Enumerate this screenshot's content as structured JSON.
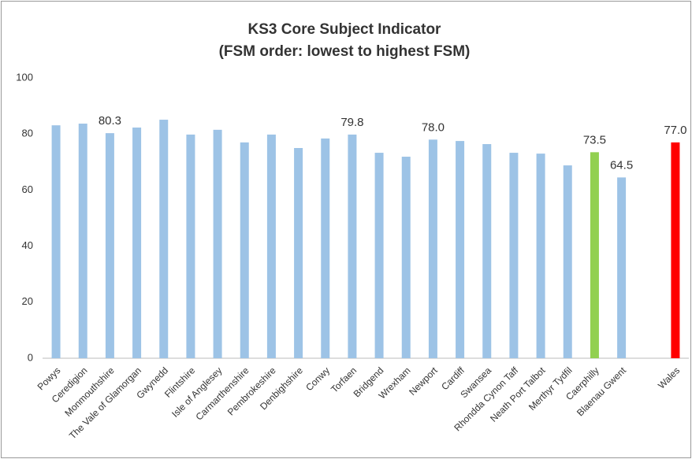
{
  "chart_data": {
    "type": "bar",
    "title": "KS3 Core Subject Indicator",
    "subtitle": "(FSM order: lowest to highest FSM)",
    "categories": [
      "Powys",
      "Ceredigion",
      "Monmouthshire",
      "The Vale of Glamorgan",
      "Gwynedd",
      "Flintshire",
      "Isle of Anglesey",
      "Carmarthenshire",
      "Pembrokeshire",
      "Denbighshire",
      "Conwy",
      "Torfaen",
      "Bridgend",
      "Wrexham",
      "Newport",
      "Cardiff",
      "Swansea",
      "Rhondda Cynon Taff",
      "Neath Port Talbot",
      "Merthyr Tydfil",
      "Caerphilly",
      "Blaenau Gwent",
      null,
      "Wales"
    ],
    "values": [
      83.1,
      83.7,
      80.3,
      82.3,
      85.1,
      79.8,
      81.5,
      77.0,
      79.8,
      75.0,
      78.4,
      79.8,
      73.3,
      71.9,
      78.0,
      77.5,
      76.4,
      73.3,
      73.0,
      68.8,
      73.5,
      64.5,
      null,
      77.0
    ],
    "value_labels": [
      null,
      null,
      "80.3",
      null,
      null,
      null,
      null,
      null,
      null,
      null,
      null,
      "79.8",
      null,
      null,
      "78.0",
      null,
      null,
      null,
      null,
      null,
      "73.5",
      "64.5",
      null,
      "77.0"
    ],
    "colors": [
      "#9dc3e6",
      "#9dc3e6",
      "#9dc3e6",
      "#9dc3e6",
      "#9dc3e6",
      "#9dc3e6",
      "#9dc3e6",
      "#9dc3e6",
      "#9dc3e6",
      "#9dc3e6",
      "#9dc3e6",
      "#9dc3e6",
      "#9dc3e6",
      "#9dc3e6",
      "#9dc3e6",
      "#9dc3e6",
      "#9dc3e6",
      "#9dc3e6",
      "#9dc3e6",
      "#9dc3e6",
      "#92d050",
      "#9dc3e6",
      null,
      "#ff0000"
    ],
    "ylim": [
      0,
      100
    ],
    "yticks": [
      0,
      20,
      40,
      60,
      80,
      100
    ],
    "grid": false
  }
}
